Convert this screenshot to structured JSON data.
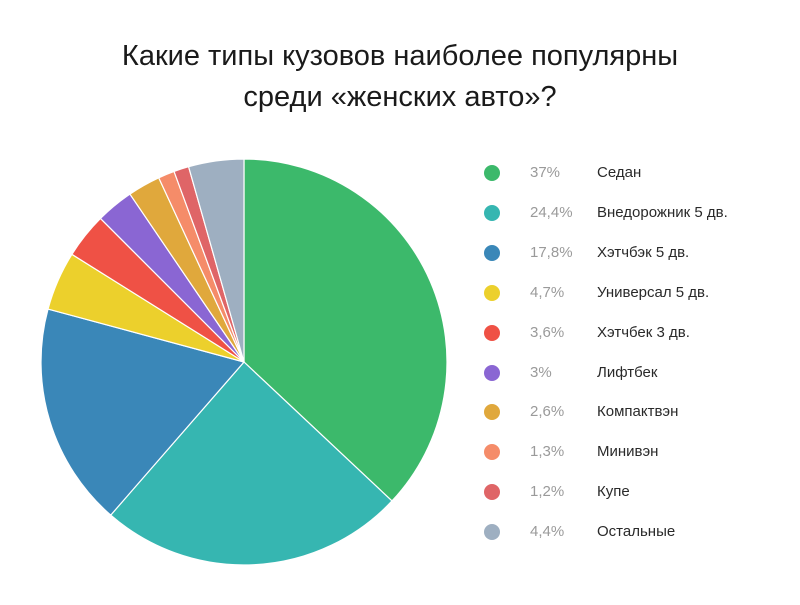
{
  "chart_data": {
    "type": "pie",
    "title_lines": [
      "Какие типы кузовов наиболее популярны",
      "среди «женских авто»?"
    ],
    "slices": [
      {
        "label": "Седан",
        "value": 37,
        "value_text": "37%",
        "color": "#3cb96b"
      },
      {
        "label": "Внедорожник 5 дв.",
        "value": 24.4,
        "value_text": "24,4%",
        "color": "#36b6b1"
      },
      {
        "label": "Хэтчбэк 5 дв.",
        "value": 17.8,
        "value_text": "17,8%",
        "color": "#3a87b8"
      },
      {
        "label": "Универсал 5 дв.",
        "value": 4.7,
        "value_text": "4,7%",
        "color": "#ecd02c"
      },
      {
        "label": "Хэтчбек 3 дв.",
        "value": 3.6,
        "value_text": "3,6%",
        "color": "#ef5145"
      },
      {
        "label": "Лифтбек",
        "value": 3,
        "value_text": "3%",
        "color": "#8a66d3"
      },
      {
        "label": "Компактвэн",
        "value": 2.6,
        "value_text": "2,6%",
        "color": "#e0a83c"
      },
      {
        "label": "Минивэн",
        "value": 1.3,
        "value_text": "1,3%",
        "color": "#f58c69"
      },
      {
        "label": "Купе",
        "value": 1.2,
        "value_text": "1,2%",
        "color": "#df6567"
      },
      {
        "label": "Остальные",
        "value": 4.4,
        "value_text": "4,4%",
        "color": "#9eafc1"
      }
    ],
    "legend_position": "right",
    "start_angle": "top",
    "direction": "clockwise"
  }
}
